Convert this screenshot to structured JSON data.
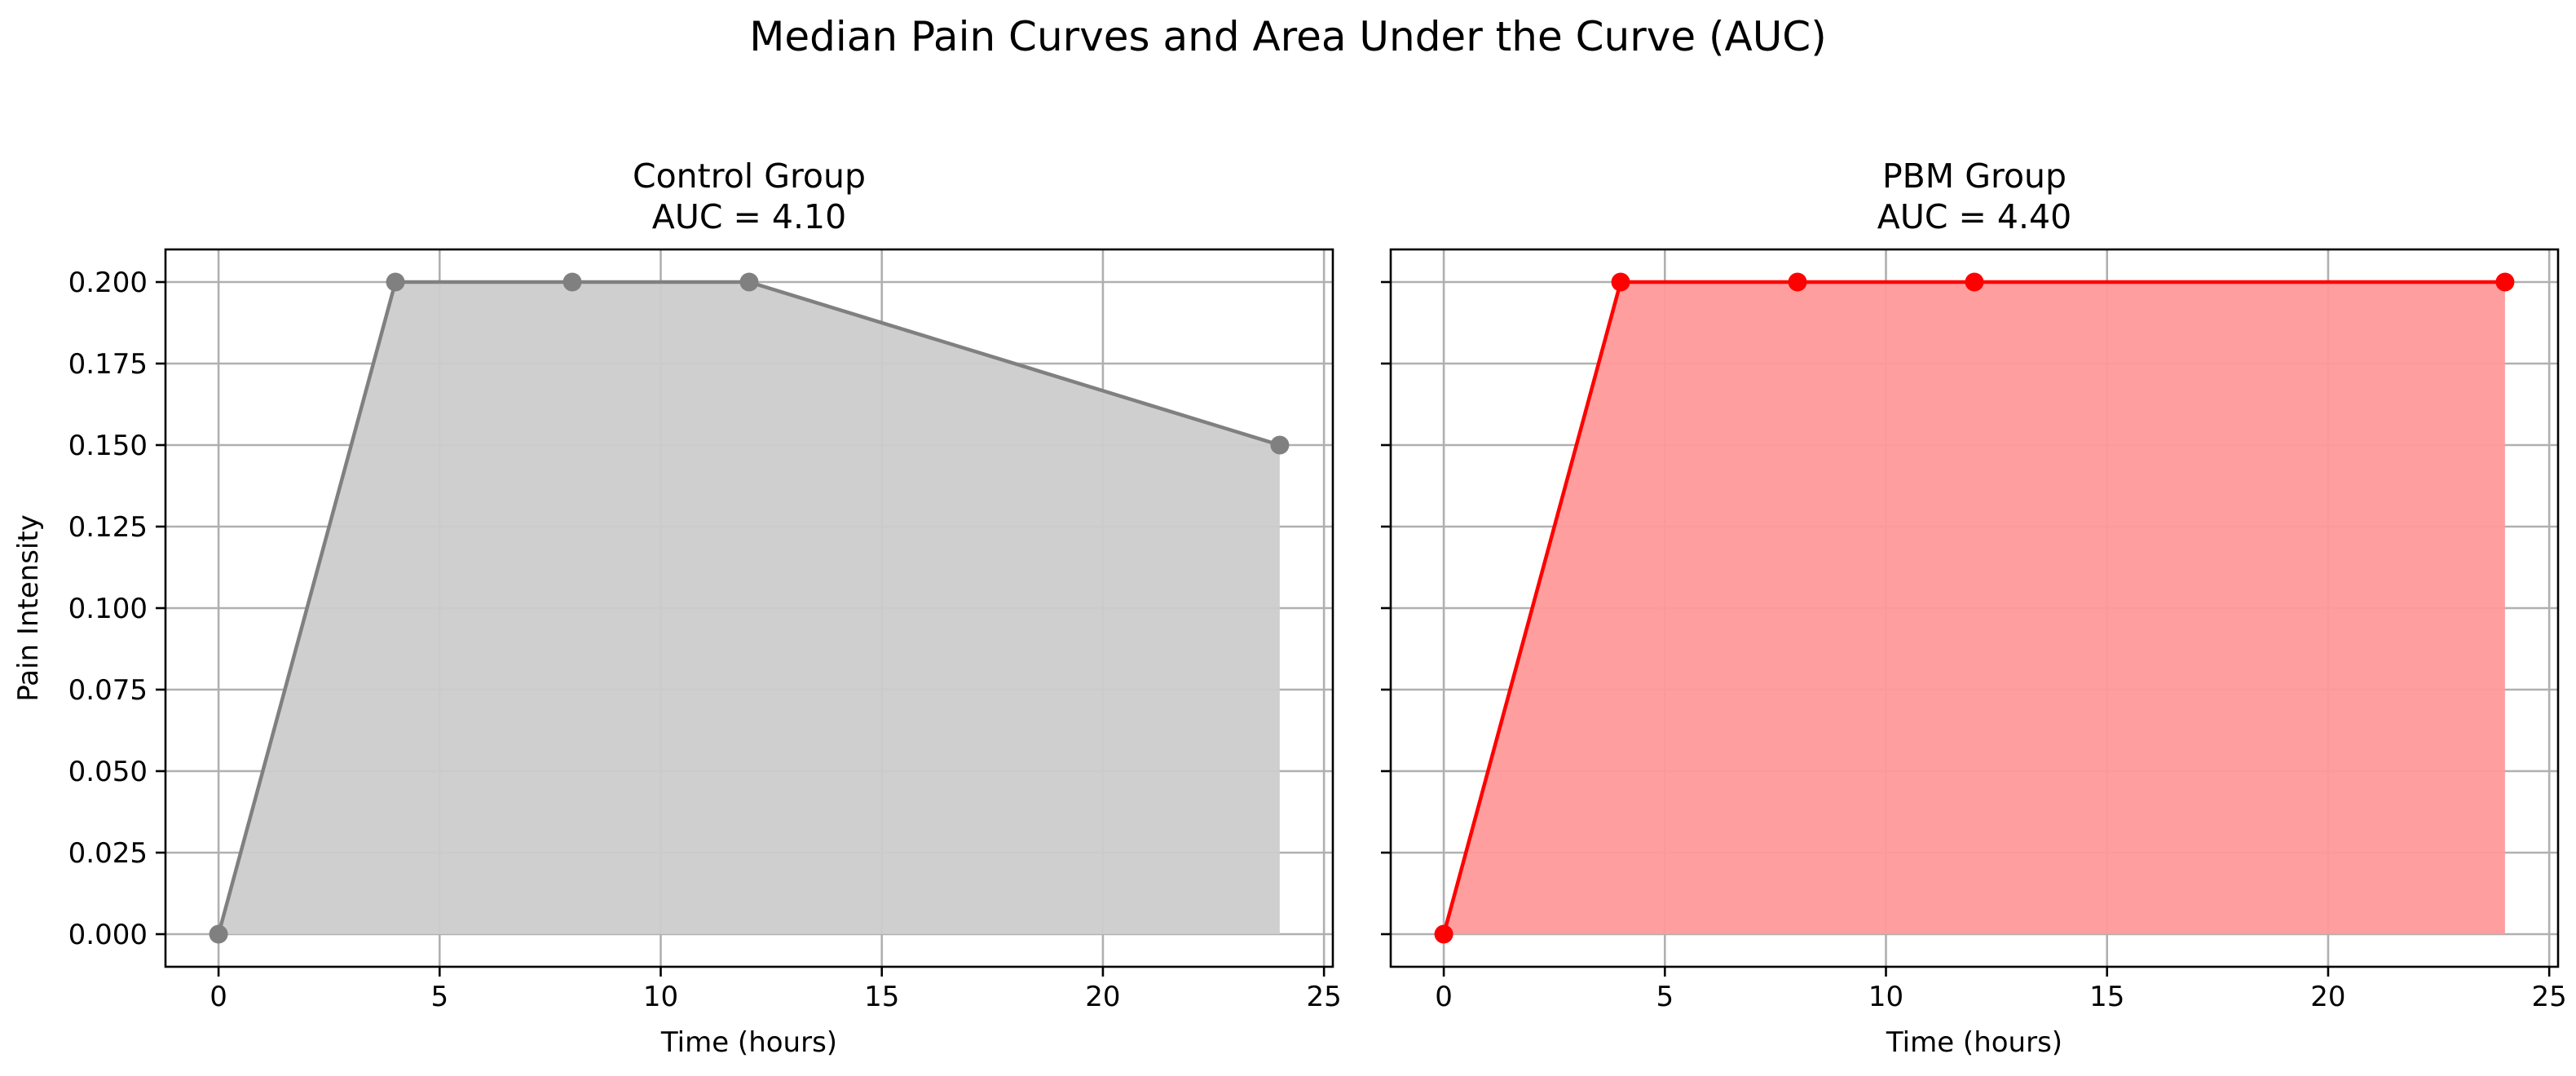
{
  "figure": {
    "title": "Median Pain Curves and Area Under the Curve (AUC)"
  },
  "chart_data": [
    {
      "type": "area",
      "title": "Control Group",
      "subtitle": "AUC = 4.10",
      "xlabel": "Time (hours)",
      "ylabel": "Pain Intensity",
      "xlim": [
        -1.2,
        25.2
      ],
      "ylim": [
        -0.01,
        0.21
      ],
      "xticks": [
        0,
        5,
        10,
        15,
        20,
        25
      ],
      "xtick_labels": [
        "0",
        "5",
        "10",
        "15",
        "20",
        "25"
      ],
      "yticks": [
        0,
        0.025,
        0.05,
        0.075,
        0.1,
        0.125,
        0.15,
        0.175,
        0.2
      ],
      "ytick_labels": [
        "0.000",
        "0.025",
        "0.050",
        "0.075",
        "0.100",
        "0.125",
        "0.150",
        "0.175",
        "0.200"
      ],
      "show_ytick_labels": true,
      "grid": true,
      "line_color": "#808080",
      "fill_color": "#cccccc",
      "x": [
        0,
        4,
        8,
        12,
        24
      ],
      "y": [
        0.0,
        0.2,
        0.2,
        0.2,
        0.15
      ]
    },
    {
      "type": "area",
      "title": "PBM Group",
      "subtitle": "AUC = 4.40",
      "xlabel": "Time (hours)",
      "ylabel": "",
      "xlim": [
        -1.2,
        25.2
      ],
      "ylim": [
        -0.01,
        0.21
      ],
      "xticks": [
        0,
        5,
        10,
        15,
        20,
        25
      ],
      "xtick_labels": [
        "0",
        "5",
        "10",
        "15",
        "20",
        "25"
      ],
      "yticks": [
        0,
        0.025,
        0.05,
        0.075,
        0.1,
        0.125,
        0.15,
        0.175,
        0.2
      ],
      "ytick_labels": [
        "0.000",
        "0.025",
        "0.050",
        "0.075",
        "0.100",
        "0.125",
        "0.150",
        "0.175",
        "0.200"
      ],
      "show_ytick_labels": false,
      "grid": true,
      "line_color": "#ff0000",
      "fill_color": "#ff9999",
      "x": [
        0,
        4,
        8,
        12,
        24
      ],
      "y": [
        0.0,
        0.2,
        0.2,
        0.2,
        0.2
      ]
    }
  ]
}
